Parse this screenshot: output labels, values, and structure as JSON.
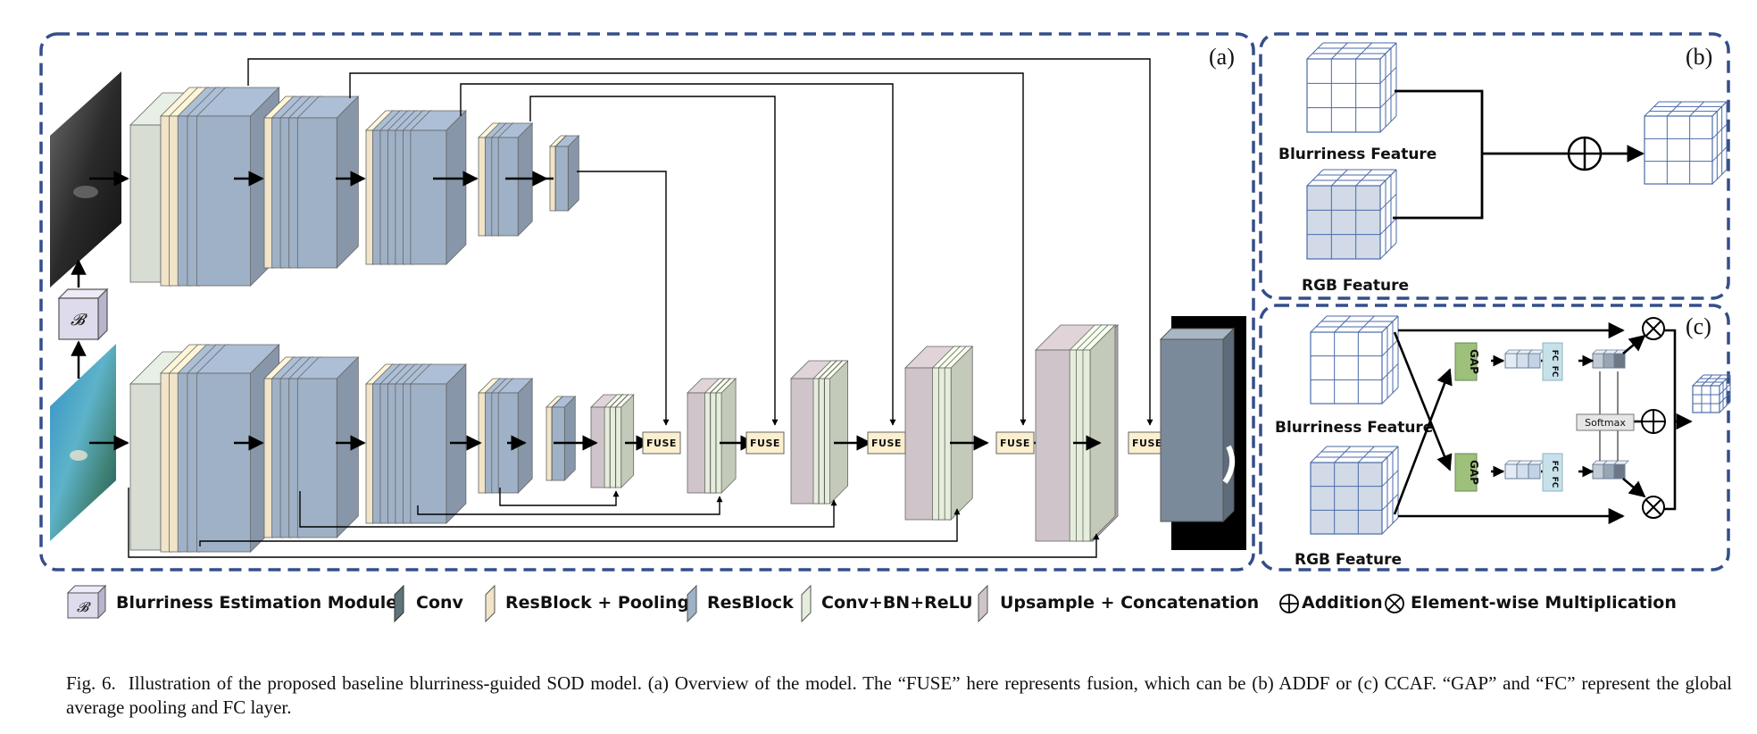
{
  "panels": {
    "a": "(a)",
    "b": "(b)",
    "c": "(c)"
  },
  "blur_module_symbol": "𝓑",
  "fuse_label": "FUSE",
  "panel_b": {
    "top_feature": "Blurriness Feature",
    "bottom_feature": "RGB Feature"
  },
  "panel_c": {
    "top_feature": "Blurriness Feature",
    "bottom_feature": "RGB Feature",
    "gap_label": "GAP",
    "fc_label": "FC",
    "softmax_label": "Softmax"
  },
  "legend": [
    {
      "key": "blur",
      "label": "Blurriness Estimation Module"
    },
    {
      "key": "conv",
      "label": "Conv",
      "color": "#5f7478"
    },
    {
      "key": "resblock_pool",
      "label": "ResBlock + Pooling",
      "color": "#f1e4c8"
    },
    {
      "key": "resblock",
      "label": "ResBlock",
      "color": "#9fb1c6"
    },
    {
      "key": "conv_bn_relu",
      "label": "Conv+BN+ReLU",
      "color": "#e5eedb"
    },
    {
      "key": "upsample",
      "label": "Upsample + Concatenation",
      "color": "#cfc4c9"
    },
    {
      "key": "add",
      "label": "Addition"
    },
    {
      "key": "mul",
      "label": "Element-wise Multiplication"
    }
  ],
  "caption": {
    "lead": "Fig. 6.",
    "text": "Illustration of the proposed baseline blurriness-guided SOD model. (a) Overview of the model. The “FUSE” here represents fusion, which can be (b) ADDF or (c) CCAF. “GAP” and “FC” represent the global average pooling and FC layer."
  },
  "colors": {
    "frame": "#344e8a",
    "conv": "#5f7478",
    "resblock_pool": "#f1e4c8",
    "resblock": "#9fb1c6",
    "conv_bn_relu": "#e5eedb",
    "upsample": "#cfc4c9",
    "input_conv": "#d7ddd3",
    "fuse": "#fbefcf",
    "gap": "#9dc07a",
    "fc": "#c7e1ea",
    "blur_module": "#dedbec",
    "output": "#7b8a9b"
  }
}
